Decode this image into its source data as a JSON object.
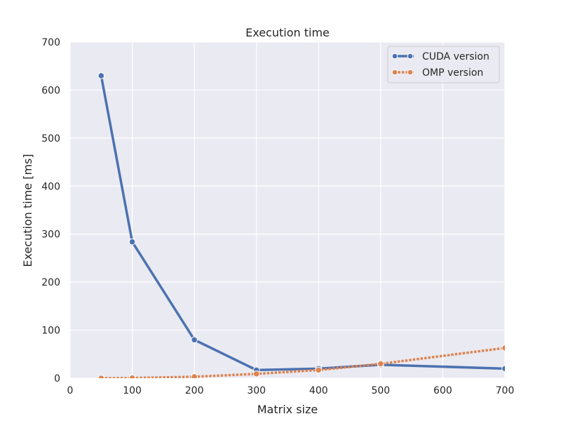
{
  "chart_data": {
    "type": "line",
    "title": "Execution time",
    "xlabel": "Matrix size",
    "ylabel": "Execution time [ms]",
    "xlim": [
      0,
      700
    ],
    "ylim": [
      0,
      700
    ],
    "xticks": [
      0,
      100,
      200,
      300,
      400,
      500,
      600,
      700
    ],
    "yticks": [
      0,
      100,
      200,
      300,
      400,
      500,
      600,
      700
    ],
    "grid": true,
    "legend_position": "top-right",
    "background_color": "#EAEAF2",
    "series": [
      {
        "name": "CUDA version",
        "color": "#4C72B0",
        "line_style": "solid",
        "x": [
          50,
          100,
          200,
          300,
          400,
          500,
          700
        ],
        "y": [
          630,
          284,
          80,
          17,
          20,
          28,
          20
        ]
      },
      {
        "name": "OMP version",
        "color": "#DD8452",
        "line_style": "dotted",
        "x": [
          50,
          100,
          200,
          300,
          400,
          500,
          700
        ],
        "y": [
          0,
          0.5,
          3,
          9,
          17,
          30,
          63
        ]
      }
    ]
  }
}
